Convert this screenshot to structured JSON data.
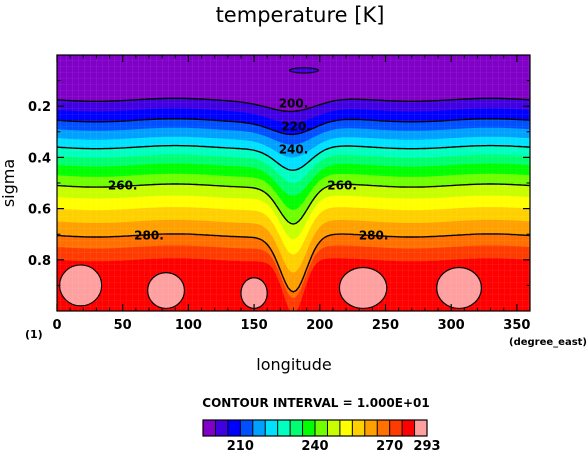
{
  "chart_data": {
    "type": "contour",
    "title": "temperature [K]",
    "xlabel": "longitude",
    "xunit": "(degree_east)",
    "ylabel": "sigma",
    "corner_label": "(1)",
    "xlim": [
      0,
      360
    ],
    "ylim": [
      1.0,
      0.0
    ],
    "x_ticks": [
      0,
      50,
      100,
      150,
      200,
      250,
      300,
      350
    ],
    "y_ticks": [
      0.2,
      0.4,
      0.6,
      0.8
    ],
    "contour_interval_text": "CONTOUR INTERVAL = 1.000E+01",
    "contour_labels": [
      {
        "value": "200.",
        "x": 180,
        "y": 0.19
      },
      {
        "value": "220.",
        "x": 182,
        "y": 0.28
      },
      {
        "value": "240.",
        "x": 180,
        "y": 0.37
      },
      {
        "value": "260.",
        "x": 50,
        "y": 0.51
      },
      {
        "value": "260.",
        "x": 217,
        "y": 0.51
      },
      {
        "value": "280.",
        "x": 70,
        "y": 0.705
      },
      {
        "value": "280.",
        "x": 241,
        "y": 0.705
      }
    ],
    "levels": [
      195,
      200,
      205,
      210,
      215,
      220,
      225,
      230,
      235,
      240,
      245,
      250,
      255,
      260,
      265,
      270,
      275,
      280,
      285,
      290,
      293
    ],
    "colors": [
      "#8000c8",
      "#4000e0",
      "#0000ff",
      "#0050ff",
      "#00a0ff",
      "#00e0ff",
      "#00ffc0",
      "#00ff70",
      "#00ff00",
      "#70ff00",
      "#c8ff00",
      "#ffff00",
      "#ffd000",
      "#ffa000",
      "#ff7000",
      "#ff3c00",
      "#ff0000",
      "#ffa0a0"
    ],
    "colorbar_ticks": [
      "210",
      "240",
      "270",
      "293"
    ],
    "layers": [
      {
        "name": "top",
        "color": "#8000c8",
        "y": 0.0,
        "dip": 0,
        "w": 1
      },
      {
        "name": "l1",
        "color": "#4000e0",
        "y": 0.175,
        "dip": 0.045,
        "w": 18
      },
      {
        "name": "l2",
        "color": "#0000ff",
        "y": 0.215,
        "dip": 0.05,
        "w": 17
      },
      {
        "name": "l3",
        "color": "#0050ff",
        "y": 0.255,
        "dip": 0.055,
        "w": 16
      },
      {
        "name": "l4",
        "color": "#00a0ff",
        "y": 0.29,
        "dip": 0.06,
        "w": 15
      },
      {
        "name": "l5",
        "color": "#00e0ff",
        "y": 0.325,
        "dip": 0.075,
        "w": 14
      },
      {
        "name": "l6",
        "color": "#00ffc0",
        "y": 0.36,
        "dip": 0.09,
        "w": 13
      },
      {
        "name": "l7",
        "color": "#00ff70",
        "y": 0.395,
        "dip": 0.105,
        "w": 12
      },
      {
        "name": "l8",
        "color": "#00ff00",
        "y": 0.43,
        "dip": 0.12,
        "w": 12
      },
      {
        "name": "l9",
        "color": "#70ff00",
        "y": 0.47,
        "dip": 0.135,
        "w": 11
      },
      {
        "name": "l10",
        "color": "#c8ff00",
        "y": 0.51,
        "dip": 0.15,
        "w": 11
      },
      {
        "name": "l11",
        "color": "#ffff00",
        "y": 0.555,
        "dip": 0.165,
        "w": 10
      },
      {
        "name": "l12",
        "color": "#ffd000",
        "y": 0.6,
        "dip": 0.18,
        "w": 10
      },
      {
        "name": "l13",
        "color": "#ffa000",
        "y": 0.65,
        "dip": 0.2,
        "w": 10
      },
      {
        "name": "l14",
        "color": "#ff7000",
        "y": 0.705,
        "dip": 0.22,
        "w": 10
      },
      {
        "name": "l15",
        "color": "#ff3c00",
        "y": 0.75,
        "dip": 0.2,
        "w": 9
      },
      {
        "name": "l16",
        "color": "#ff0000",
        "y": 0.8,
        "dip": 0.21,
        "w": 8
      }
    ],
    "contour_lines": [
      {
        "value": 200,
        "y": 0.175,
        "dip": 0.045,
        "w": 18
      },
      {
        "value": 220,
        "y": 0.255,
        "dip": 0.055,
        "w": 16
      },
      {
        "value": 240,
        "y": 0.36,
        "dip": 0.09,
        "w": 13
      },
      {
        "value": 260,
        "y": 0.51,
        "dip": 0.15,
        "w": 11
      },
      {
        "value": 280,
        "y": 0.705,
        "dip": 0.22,
        "w": 10
      }
    ],
    "warm_blobs": [
      {
        "x": 18,
        "y": 0.9,
        "rx": 16,
        "ry": 0.08
      },
      {
        "x": 83,
        "y": 0.92,
        "rx": 14,
        "ry": 0.07
      },
      {
        "x": 150,
        "y": 0.93,
        "rx": 10,
        "ry": 0.06
      },
      {
        "x": 233,
        "y": 0.91,
        "rx": 18,
        "ry": 0.08
      },
      {
        "x": 306,
        "y": 0.91,
        "rx": 17,
        "ry": 0.08
      }
    ],
    "cold_blob": {
      "x": 188,
      "y": 0.06,
      "rx": 11,
      "ry": 0.01
    }
  }
}
